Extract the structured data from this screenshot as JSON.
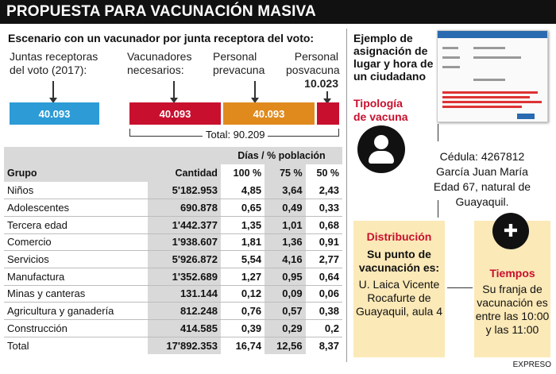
{
  "header": {
    "title": "PROPUESTA PARA VACUNACIÓN MASIVA"
  },
  "scenario": {
    "subtitle": "Escenario con un vacunador por junta receptora del voto:",
    "juntas_label_1": "Juntas receptoras",
    "juntas_label_2": "del voto (2017):",
    "vacunadores_label_1": "Vacunadores",
    "vacunadores_label_2": "necesarios:",
    "pre_label_1": "Personal",
    "pre_label_2": "prevacuna",
    "post_label_1": "Personal",
    "post_label_2": "posvacuna",
    "post_value": "10.023",
    "juntas_value": "40.093",
    "vacunadores_value": "40.093",
    "pre_value": "40.093",
    "total": "Total: 90.209"
  },
  "table": {
    "col_group": "Grupo",
    "col_qty": "Cantidad",
    "col_days": "Días / % población",
    "col_100": "100 %",
    "col_75": "75 %",
    "col_50": "50 %",
    "rows": [
      {
        "g": "Niños",
        "q": "5'182.953",
        "a": "4,85",
        "b": "3,64",
        "c": "2,43"
      },
      {
        "g": "Adolescentes",
        "q": "690.878",
        "a": "0,65",
        "b": "0,49",
        "c": "0,33"
      },
      {
        "g": "Tercera edad",
        "q": "1'442.377",
        "a": "1,35",
        "b": "1,01",
        "c": "0,68"
      },
      {
        "g": "Comercio",
        "q": "1'938.607",
        "a": "1,81",
        "b": "1,36",
        "c": "0,91"
      },
      {
        "g": "Servicios",
        "q": "5'926.872",
        "a": "5,54",
        "b": "4,16",
        "c": "2,77"
      },
      {
        "g": "Manufactura",
        "q": "1'352.689",
        "a": "1,27",
        "b": "0,95",
        "c": "0,64"
      },
      {
        "g": "Minas y canteras",
        "q": "131.144",
        "a": "0,12",
        "b": "0,09",
        "c": "0,06"
      },
      {
        "g": "Agricultura y ganadería",
        "q": "812.248",
        "a": "0,76",
        "b": "0,57",
        "c": "0,38"
      },
      {
        "g": "Construcción",
        "q": "414.585",
        "a": "0,39",
        "b": "0,29",
        "c": "0,2"
      },
      {
        "g": "Total",
        "q": "17'892.353",
        "a": "16,74",
        "b": "12,56",
        "c": "8,37"
      }
    ]
  },
  "example": {
    "title": "Ejemplo de asignación de lugar y hora de un ciudadano",
    "tipologia_1": "Tipología",
    "tipologia_2": "de vacuna",
    "cedula": "Cédula: 4267812",
    "name": "García Juan María",
    "age": "Edad 67, natural de Guayaquil.",
    "dist_title": "Distribución",
    "dist_sub": "Su punto de vacunación es:",
    "dist_body": "U. Laica Vicente Rocafurte de Guayaquil, aula 4",
    "time_title": "Tiempos",
    "time_body": "Su franja de vacunación es entre las 10:00 y las 11:00"
  },
  "credit": "EXPRESO"
}
